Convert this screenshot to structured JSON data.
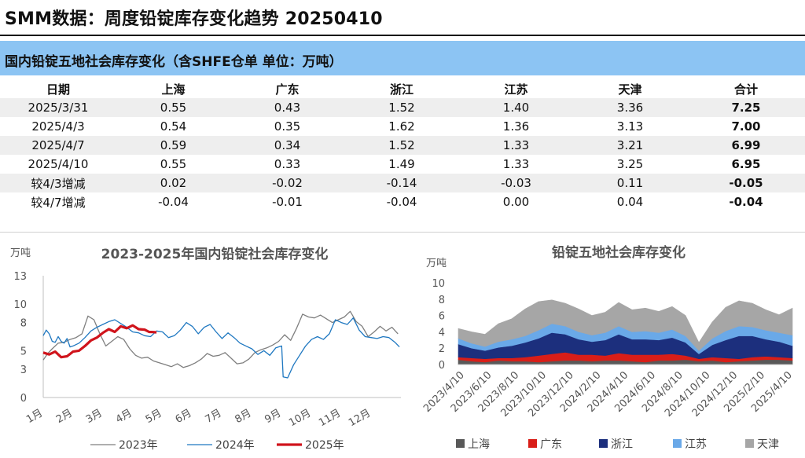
{
  "title": "SMM数据：周度铅锭库存变化趋势 20250410",
  "banner": "国内铅锭五地社会库存变化（含SHFE仓单 单位：万吨）",
  "table": {
    "headers": [
      "日期",
      "上海",
      "广东",
      "浙江",
      "江苏",
      "天津",
      "合计"
    ],
    "rows": [
      [
        "2025/3/31",
        "0.55",
        "0.43",
        "1.52",
        "1.40",
        "3.36",
        "7.25"
      ],
      [
        "2025/4/3",
        "0.54",
        "0.35",
        "1.62",
        "1.36",
        "3.13",
        "7.00"
      ],
      [
        "2025/4/7",
        "0.59",
        "0.34",
        "1.52",
        "1.33",
        "3.21",
        "6.99"
      ],
      [
        "2025/4/10",
        "0.55",
        "0.33",
        "1.49",
        "1.33",
        "3.25",
        "6.95"
      ],
      [
        "较4/3增减",
        "0.02",
        "-0.02",
        "-0.14",
        "-0.03",
        "0.11",
        "-0.05"
      ],
      [
        "较4/7增减",
        "-0.04",
        "-0.01",
        "-0.04",
        "0.00",
        "0.04",
        "-0.04"
      ]
    ]
  },
  "chart_data": [
    {
      "type": "line",
      "title": "2023-2025年国内铅锭社会库存变化",
      "ylabel": "万吨",
      "ylim": [
        0,
        13
      ],
      "yticks": [
        "0",
        "3",
        "5",
        "8",
        "10",
        "13"
      ],
      "categories": [
        "1月",
        "2月",
        "3月",
        "4月",
        "5月",
        "6月",
        "7月",
        "8月",
        "9月",
        "10月",
        "11月",
        "12月"
      ],
      "legend_position": "bottom",
      "series": [
        {
          "name": "2023年",
          "color": "#7f7f7f",
          "width": 1.3,
          "values": [
            [
              0,
              4.0
            ],
            [
              0.15,
              4.7
            ],
            [
              0.3,
              5.2
            ],
            [
              0.5,
              5.8
            ],
            [
              0.7,
              5.9
            ],
            [
              0.9,
              6.2
            ],
            [
              1.1,
              6.4
            ],
            [
              1.3,
              6.8
            ],
            [
              1.5,
              8.7
            ],
            [
              1.7,
              8.3
            ],
            [
              1.9,
              6.8
            ],
            [
              2.1,
              5.5
            ],
            [
              2.3,
              6.0
            ],
            [
              2.5,
              6.5
            ],
            [
              2.7,
              6.2
            ],
            [
              2.9,
              5.2
            ],
            [
              3.1,
              4.5
            ],
            [
              3.3,
              4.2
            ],
            [
              3.5,
              4.3
            ],
            [
              3.7,
              3.9
            ],
            [
              3.9,
              3.7
            ],
            [
              4.1,
              3.5
            ],
            [
              4.3,
              3.3
            ],
            [
              4.5,
              3.6
            ],
            [
              4.7,
              3.2
            ],
            [
              4.9,
              3.4
            ],
            [
              5.1,
              3.7
            ],
            [
              5.3,
              4.1
            ],
            [
              5.5,
              4.7
            ],
            [
              5.7,
              4.4
            ],
            [
              5.9,
              4.5
            ],
            [
              6.1,
              4.8
            ],
            [
              6.3,
              4.2
            ],
            [
              6.5,
              3.6
            ],
            [
              6.7,
              3.7
            ],
            [
              6.9,
              4.1
            ],
            [
              7.1,
              4.8
            ],
            [
              7.3,
              5.1
            ],
            [
              7.5,
              5.3
            ],
            [
              7.7,
              5.6
            ],
            [
              7.9,
              6.0
            ],
            [
              8.1,
              6.7
            ],
            [
              8.3,
              6.1
            ],
            [
              8.5,
              7.4
            ],
            [
              8.7,
              8.9
            ],
            [
              8.9,
              8.6
            ],
            [
              9.1,
              8.5
            ],
            [
              9.3,
              8.8
            ],
            [
              9.5,
              8.4
            ],
            [
              9.7,
              8.0
            ],
            [
              9.9,
              8.3
            ],
            [
              10.1,
              8.6
            ],
            [
              10.3,
              9.2
            ],
            [
              10.5,
              8.1
            ],
            [
              10.7,
              7.6
            ],
            [
              10.9,
              6.5
            ],
            [
              11.1,
              7.0
            ],
            [
              11.3,
              7.6
            ],
            [
              11.5,
              7.1
            ],
            [
              11.7,
              7.5
            ],
            [
              11.9,
              6.8
            ]
          ]
        },
        {
          "name": "2024年",
          "color": "#1f78c1",
          "width": 1.3,
          "values": [
            [
              0,
              6.6
            ],
            [
              0.1,
              7.2
            ],
            [
              0.2,
              6.8
            ],
            [
              0.3,
              6.0
            ],
            [
              0.4,
              5.9
            ],
            [
              0.5,
              6.5
            ],
            [
              0.6,
              6.0
            ],
            [
              0.7,
              5.8
            ],
            [
              0.8,
              6.3
            ],
            [
              0.9,
              5.4
            ],
            [
              1.0,
              5.5
            ],
            [
              1.2,
              5.8
            ],
            [
              1.4,
              6.4
            ],
            [
              1.6,
              7.1
            ],
            [
              1.8,
              7.5
            ],
            [
              2.0,
              7.8
            ],
            [
              2.2,
              8.1
            ],
            [
              2.4,
              8.3
            ],
            [
              2.6,
              7.9
            ],
            [
              2.8,
              7.5
            ],
            [
              3.0,
              7.0
            ],
            [
              3.2,
              6.9
            ],
            [
              3.4,
              6.6
            ],
            [
              3.6,
              6.5
            ],
            [
              3.8,
              7.1
            ],
            [
              4.0,
              7.0
            ],
            [
              4.2,
              6.4
            ],
            [
              4.4,
              6.6
            ],
            [
              4.6,
              7.2
            ],
            [
              4.8,
              8.0
            ],
            [
              5.0,
              7.6
            ],
            [
              5.2,
              6.8
            ],
            [
              5.4,
              7.5
            ],
            [
              5.6,
              7.8
            ],
            [
              5.8,
              7.0
            ],
            [
              6.0,
              6.3
            ],
            [
              6.2,
              6.9
            ],
            [
              6.4,
              6.4
            ],
            [
              6.6,
              5.8
            ],
            [
              6.8,
              5.5
            ],
            [
              7.0,
              5.2
            ],
            [
              7.2,
              4.6
            ],
            [
              7.4,
              5.0
            ],
            [
              7.6,
              4.5
            ],
            [
              7.8,
              5.3
            ],
            [
              8.0,
              5.5
            ],
            [
              8.05,
              2.2
            ],
            [
              8.2,
              2.1
            ],
            [
              8.4,
              3.5
            ],
            [
              8.6,
              4.5
            ],
            [
              8.8,
              5.5
            ],
            [
              9.0,
              6.2
            ],
            [
              9.2,
              6.5
            ],
            [
              9.4,
              6.2
            ],
            [
              9.6,
              6.8
            ],
            [
              9.8,
              8.3
            ],
            [
              10.0,
              8.0
            ],
            [
              10.2,
              7.8
            ],
            [
              10.4,
              8.5
            ],
            [
              10.6,
              7.2
            ],
            [
              10.8,
              6.5
            ],
            [
              11.0,
              6.4
            ],
            [
              11.2,
              6.3
            ],
            [
              11.4,
              6.5
            ],
            [
              11.6,
              6.4
            ],
            [
              11.8,
              5.9
            ],
            [
              11.95,
              5.4
            ]
          ]
        },
        {
          "name": "2025年",
          "color": "#d0141c",
          "width": 3.2,
          "values": [
            [
              0,
              4.8
            ],
            [
              0.2,
              4.6
            ],
            [
              0.4,
              4.9
            ],
            [
              0.6,
              4.3
            ],
            [
              0.8,
              4.4
            ],
            [
              1.0,
              4.9
            ],
            [
              1.2,
              5.0
            ],
            [
              1.4,
              5.5
            ],
            [
              1.6,
              6.1
            ],
            [
              1.8,
              6.4
            ],
            [
              2.0,
              6.9
            ],
            [
              2.2,
              7.3
            ],
            [
              2.4,
              7.0
            ],
            [
              2.6,
              7.6
            ],
            [
              2.8,
              7.4
            ],
            [
              3.0,
              7.7
            ],
            [
              3.2,
              7.3
            ],
            [
              3.4,
              7.25
            ],
            [
              3.55,
              7.0
            ],
            [
              3.7,
              6.99
            ],
            [
              3.8,
              6.95
            ]
          ]
        }
      ]
    },
    {
      "type": "area",
      "stacked": true,
      "title": "铅锭五地社会库存变化",
      "ylabel": "万吨",
      "ylim": [
        0,
        10
      ],
      "yticks": [
        "0",
        "2",
        "4",
        "6",
        "8",
        "10"
      ],
      "xticks": [
        "2023/4/10",
        "2023/6/10",
        "2023/8/10",
        "2023/10/10",
        "2023/12/10",
        "2024/2/10",
        "2024/4/10",
        "2024/6/10",
        "2024/8/10",
        "2024/10/10",
        "2024/12/10",
        "2025/2/10",
        "2025/4/10"
      ],
      "legend_position": "bottom",
      "series": [
        {
          "name": "上海",
          "color": "#595959",
          "values": [
            0.6,
            0.4,
            0.3,
            0.5,
            0.4,
            0.4,
            0.3,
            0.4,
            0.5,
            0.5,
            0.4,
            0.5,
            0.5,
            0.4,
            0.3,
            0.5,
            0.5,
            0.6,
            0.4,
            0.5,
            0.3,
            0.4,
            0.5,
            0.6,
            0.6,
            0.5
          ]
        },
        {
          "name": "广东",
          "color": "#d91e18",
          "values": [
            0.3,
            0.4,
            0.4,
            0.3,
            0.4,
            0.5,
            0.8,
            0.9,
            1.0,
            0.7,
            0.8,
            0.6,
            0.9,
            0.8,
            0.9,
            0.7,
            0.8,
            0.5,
            0.3,
            0.4,
            0.5,
            0.3,
            0.4,
            0.4,
            0.3,
            0.3
          ]
        },
        {
          "name": "浙江",
          "color": "#1c2f7d",
          "values": [
            1.6,
            1.2,
            1.0,
            1.3,
            1.5,
            1.8,
            2.1,
            2.6,
            2.2,
            1.9,
            1.6,
            1.9,
            2.3,
            1.9,
            1.9,
            1.8,
            2.0,
            1.6,
            0.6,
            1.5,
            2.2,
            2.8,
            2.6,
            2.1,
            1.9,
            1.5
          ]
        },
        {
          "name": "江苏",
          "color": "#6aa9e8",
          "values": [
            0.7,
            0.6,
            0.5,
            0.7,
            0.8,
            0.8,
            1.0,
            1.1,
            1.0,
            0.9,
            0.8,
            0.9,
            1.0,
            0.9,
            1.0,
            0.9,
            1.0,
            0.8,
            0.4,
            0.8,
            1.1,
            1.2,
            1.1,
            1.1,
            1.1,
            1.3
          ]
        },
        {
          "name": "天津",
          "color": "#a6a6a6",
          "values": [
            1.2,
            1.4,
            1.5,
            2.2,
            2.5,
            3.3,
            3.5,
            2.9,
            2.8,
            2.8,
            2.4,
            2.5,
            2.9,
            2.7,
            2.8,
            2.6,
            2.8,
            2.5,
            1.0,
            2.0,
            2.9,
            3.1,
            2.9,
            2.5,
            2.2,
            3.3
          ]
        }
      ]
    }
  ]
}
